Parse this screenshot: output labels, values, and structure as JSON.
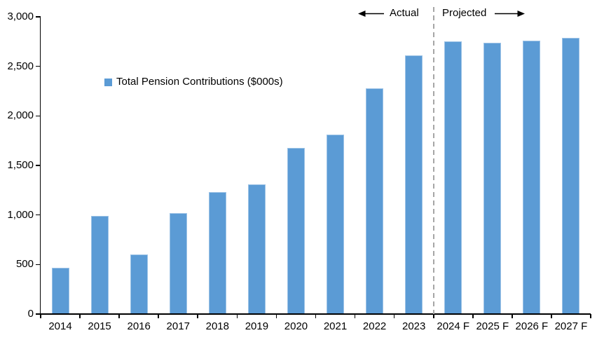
{
  "chart_data": {
    "type": "bar",
    "title": "",
    "legend": "Total Pension Contributions ($000s)",
    "categories": [
      "2014",
      "2015",
      "2016",
      "2017",
      "2018",
      "2019",
      "2020",
      "2021",
      "2022",
      "2023",
      "2024 F",
      "2025 F",
      "2026 F",
      "2027 F"
    ],
    "values": [
      470,
      990,
      600,
      1020,
      1230,
      1310,
      1680,
      1810,
      2280,
      2610,
      2750,
      2740,
      2760,
      2790
    ],
    "ylim": [
      0,
      3000
    ],
    "yticks": [
      {
        "value": 0,
        "label": "0"
      },
      {
        "value": 500,
        "label": "500"
      },
      {
        "value": 1000,
        "label": "1,000"
      },
      {
        "value": 1500,
        "label": "1,500"
      },
      {
        "value": 2000,
        "label": "2,000"
      },
      {
        "value": 2500,
        "label": "2,500"
      },
      {
        "value": 3000,
        "label": "3,000"
      }
    ],
    "annotations": {
      "left_label": "Actual",
      "right_label": "Projected"
    },
    "divider": {
      "after_category": "2023",
      "style": "dashed"
    },
    "colors": {
      "bar_fill": "#5B9BD5",
      "bar_edge": "#9DC3E6",
      "divider": "#A6A6A6",
      "axis": "#000000"
    },
    "grid": false,
    "legend_position": "inside-top-left"
  }
}
